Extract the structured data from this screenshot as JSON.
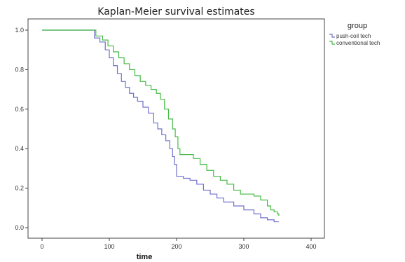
{
  "chart_data": {
    "type": "line",
    "step": true,
    "title": "Kaplan-Meier survival estimates",
    "xlabel": "time",
    "ylabel": "",
    "xlim": [
      0,
      400
    ],
    "ylim": [
      0,
      1
    ],
    "x_ticks": [
      0,
      100,
      200,
      300,
      400
    ],
    "x_tick_labels": [
      "0",
      "100",
      "200",
      "300",
      "400"
    ],
    "y_ticks": [
      0,
      0.2,
      0.4,
      0.6,
      0.8,
      1.0
    ],
    "y_tick_labels": [
      "0.0",
      "0.2",
      "0.4",
      "0.6",
      "0.8",
      "1.0"
    ],
    "grid": false,
    "legend": {
      "title": "group",
      "position": "top-right outside"
    },
    "series": [
      {
        "name": "push-coil tech",
        "color": "#7070cc",
        "points": [
          [
            0,
            1.0
          ],
          [
            76,
            1.0
          ],
          [
            78,
            0.96
          ],
          [
            86,
            0.94
          ],
          [
            94,
            0.9
          ],
          [
            100,
            0.86
          ],
          [
            106,
            0.82
          ],
          [
            112,
            0.78
          ],
          [
            118,
            0.74
          ],
          [
            124,
            0.71
          ],
          [
            130,
            0.68
          ],
          [
            136,
            0.66
          ],
          [
            142,
            0.64
          ],
          [
            150,
            0.61
          ],
          [
            158,
            0.58
          ],
          [
            166,
            0.53
          ],
          [
            172,
            0.5
          ],
          [
            178,
            0.47
          ],
          [
            184,
            0.44
          ],
          [
            190,
            0.4
          ],
          [
            194,
            0.36
          ],
          [
            197,
            0.32
          ],
          [
            200,
            0.26
          ],
          [
            210,
            0.25
          ],
          [
            220,
            0.24
          ],
          [
            230,
            0.22
          ],
          [
            240,
            0.19
          ],
          [
            250,
            0.17
          ],
          [
            260,
            0.15
          ],
          [
            270,
            0.13
          ],
          [
            285,
            0.11
          ],
          [
            300,
            0.09
          ],
          [
            315,
            0.07
          ],
          [
            325,
            0.05
          ],
          [
            335,
            0.04
          ],
          [
            345,
            0.03
          ],
          [
            352,
            0.03
          ]
        ]
      },
      {
        "name": "conventional tech",
        "color": "#44bb44",
        "points": [
          [
            0,
            1.0
          ],
          [
            76,
            1.0
          ],
          [
            80,
            0.97
          ],
          [
            90,
            0.95
          ],
          [
            98,
            0.92
          ],
          [
            106,
            0.89
          ],
          [
            114,
            0.86
          ],
          [
            122,
            0.83
          ],
          [
            130,
            0.8
          ],
          [
            138,
            0.77
          ],
          [
            146,
            0.74
          ],
          [
            154,
            0.72
          ],
          [
            162,
            0.7
          ],
          [
            170,
            0.68
          ],
          [
            176,
            0.65
          ],
          [
            182,
            0.6
          ],
          [
            188,
            0.55
          ],
          [
            194,
            0.5
          ],
          [
            198,
            0.46
          ],
          [
            202,
            0.4
          ],
          [
            205,
            0.37
          ],
          [
            215,
            0.37
          ],
          [
            225,
            0.35
          ],
          [
            235,
            0.32
          ],
          [
            245,
            0.29
          ],
          [
            255,
            0.26
          ],
          [
            265,
            0.24
          ],
          [
            275,
            0.22
          ],
          [
            285,
            0.19
          ],
          [
            295,
            0.17
          ],
          [
            315,
            0.16
          ],
          [
            325,
            0.14
          ],
          [
            335,
            0.11
          ],
          [
            340,
            0.09
          ],
          [
            345,
            0.08
          ],
          [
            350,
            0.07
          ],
          [
            352,
            0.06
          ]
        ]
      }
    ]
  }
}
